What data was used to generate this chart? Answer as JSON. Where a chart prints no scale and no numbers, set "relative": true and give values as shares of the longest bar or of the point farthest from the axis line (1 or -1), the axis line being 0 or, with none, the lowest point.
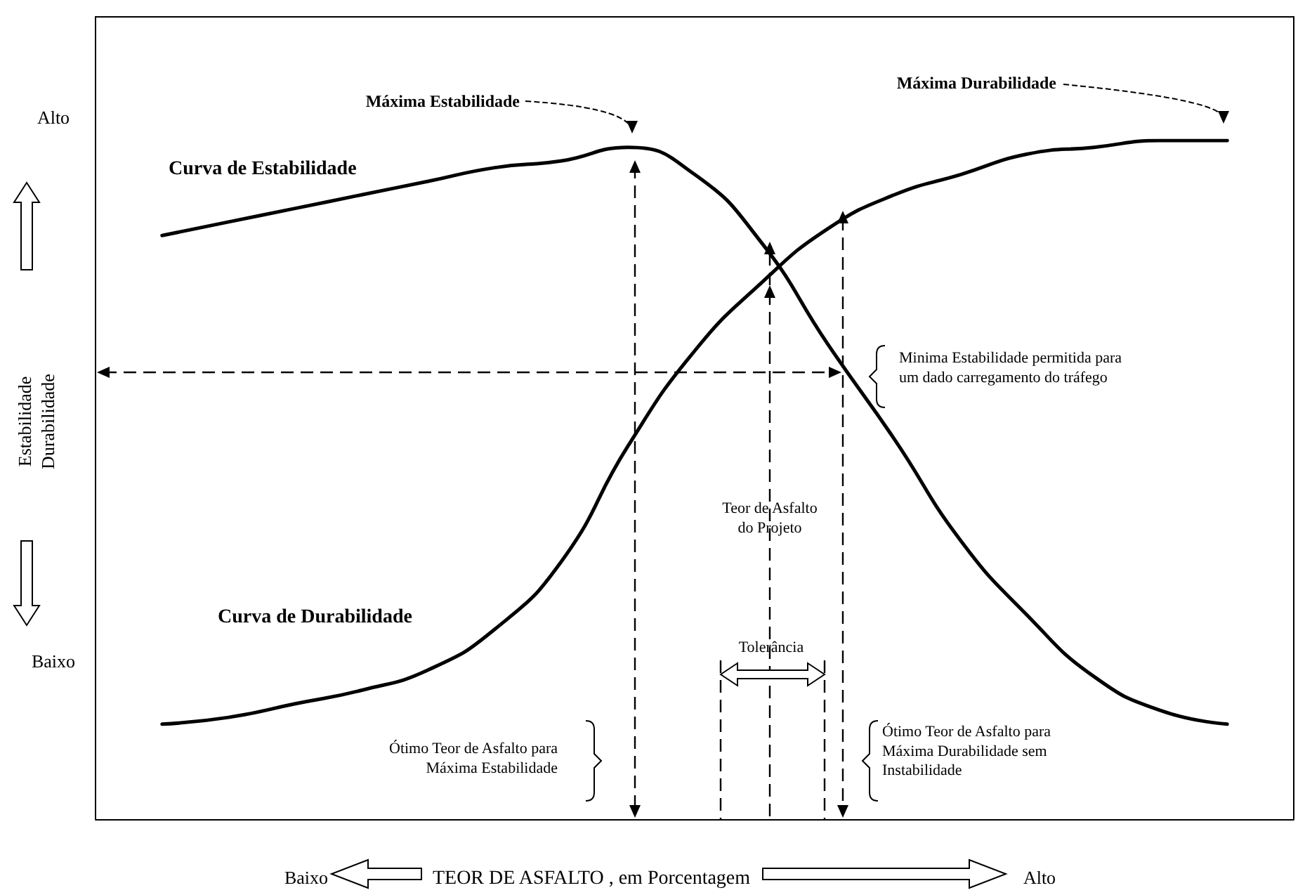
{
  "chart_data": {
    "type": "line",
    "relative": true,
    "marker": "none",
    "line_style": "solid",
    "xlabel": "TEOR DE ASFALTO , em Porcentagem",
    "ylabel": "Estabilidade\nDurabilidade",
    "categories": [
      null,
      null,
      null,
      null,
      null,
      null,
      null,
      null,
      null,
      null,
      null,
      null,
      null,
      null,
      null,
      null,
      null,
      null,
      null
    ],
    "series": [
      {
        "name": "Curva de Estabilidade",
        "color": "#000000",
        "values": [
          null,
          0.86,
          0.88,
          0.9,
          0.92,
          0.94,
          0.96,
          0.97,
          0.99,
          0.95,
          0.85,
          0.7,
          0.56,
          0.41,
          0.3,
          0.21,
          0.16,
          0.14,
          null
        ]
      },
      {
        "name": "Curva de Durabilidade",
        "color": "#000000",
        "values": [
          null,
          0.14,
          0.15,
          0.17,
          0.19,
          0.22,
          0.28,
          0.38,
          0.55,
          0.69,
          0.79,
          0.87,
          0.92,
          0.95,
          0.98,
          0.99,
          1.0,
          1.0,
          null
        ]
      }
    ],
    "annotations": [
      "Máxima Estabilidade",
      "Máxima Durabilidade",
      "Minima Estabilidade permitida para\num dado carregamento do tráfego",
      "Teor de Asfalto\ndo Projeto",
      "Tolerância",
      "Ótimo Teor de Asfalto para\nMáxima Estabilidade",
      "Ótimo Teor de Asfalto para\nMáxima Durabilidade sem\nInstabilidade",
      "Alto",
      "Baixo",
      "Baixo",
      "Alto"
    ]
  }
}
